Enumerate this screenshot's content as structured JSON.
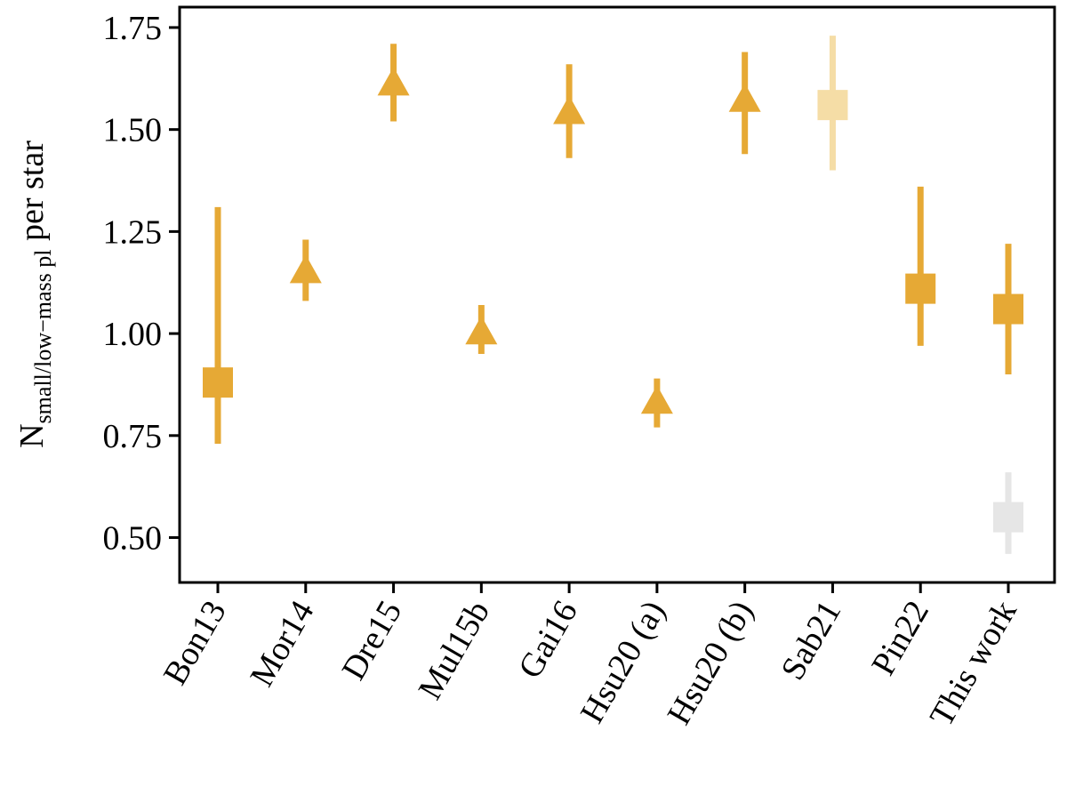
{
  "chart_data": {
    "type": "scatter",
    "categories": [
      "Bon13",
      "Mor14",
      "Dre15",
      "Mul15b",
      "Gai16",
      "Hsu20 (a)",
      "Hsu20 (b)",
      "Sab21",
      "Pin22",
      "This work"
    ],
    "ylabel": {
      "main": "N",
      "sub": "small/low−mass pl",
      "suffix": " per star"
    },
    "ylim": [
      0.39,
      1.8
    ],
    "yticks": [
      0.5,
      0.75,
      1.0,
      1.25,
      1.5,
      1.75
    ],
    "ytick_labels": [
      "0.50",
      "0.75",
      "1.00",
      "1.25",
      "1.50",
      "1.75"
    ],
    "grid": false,
    "color": "#E6A935",
    "series": [
      {
        "category": "Bon13",
        "marker": "square",
        "y": 0.88,
        "lower": 0.73,
        "upper": 1.31,
        "faded": false
      },
      {
        "category": "Mor14",
        "marker": "triangle",
        "y": 1.15,
        "lower": 1.08,
        "upper": 1.23,
        "faded": false
      },
      {
        "category": "Dre15",
        "marker": "triangle",
        "y": 1.61,
        "lower": 1.52,
        "upper": 1.71,
        "faded": false
      },
      {
        "category": "Mul15b",
        "marker": "triangle",
        "y": 1.0,
        "lower": 0.95,
        "upper": 1.07,
        "faded": false
      },
      {
        "category": "Gai16",
        "marker": "triangle",
        "y": 1.54,
        "lower": 1.43,
        "upper": 1.66,
        "faded": false
      },
      {
        "category": "Hsu20 (a)",
        "marker": "triangle",
        "y": 0.83,
        "lower": 0.77,
        "upper": 0.89,
        "faded": false
      },
      {
        "category": "Hsu20 (b)",
        "marker": "triangle",
        "y": 1.57,
        "lower": 1.44,
        "upper": 1.69,
        "faded": false
      },
      {
        "category": "Sab21",
        "marker": "square",
        "y": 1.56,
        "lower": 1.4,
        "upper": 1.73,
        "faded": true,
        "fade_color": "#F5DDA6"
      },
      {
        "category": "Pin22",
        "marker": "square",
        "y": 1.11,
        "lower": 0.97,
        "upper": 1.36,
        "faded": false
      },
      {
        "category": "This work",
        "marker": "square",
        "y": 1.06,
        "lower": 0.9,
        "upper": 1.22,
        "faded": false
      },
      {
        "category": "This work",
        "marker": "square",
        "y": 0.55,
        "lower": 0.46,
        "upper": 0.66,
        "faded": true,
        "fade_color": "#E6E6E6"
      }
    ]
  }
}
